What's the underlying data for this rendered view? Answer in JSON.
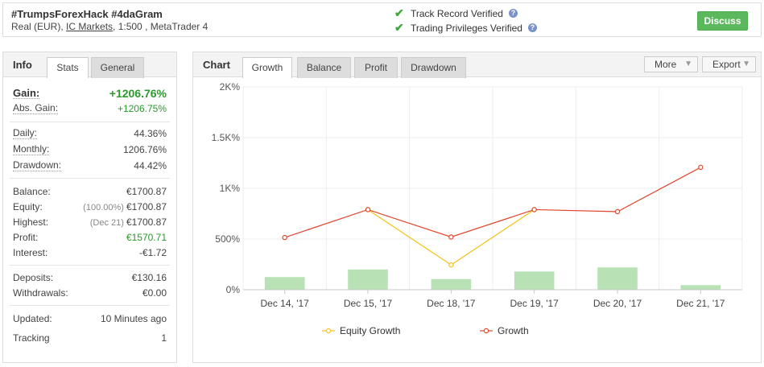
{
  "header": {
    "account_name": "#TrumpsForexHack #4daGram",
    "account_type": "Real (EUR), ",
    "broker": "IC Markets",
    "account_details": ", 1:500 , MetaTrader 4",
    "track_record": "Track Record Verified",
    "trading_privileges": "Trading Privileges Verified",
    "help_mark": "?",
    "discuss_label": "Discuss"
  },
  "left_panel": {
    "title": "Info",
    "tabs": [
      "Stats",
      "General"
    ],
    "gain": {
      "label": "Gain:",
      "value": "+1206.76%"
    },
    "abs_gain": {
      "label": "Abs. Gain:",
      "value": "+1206.75%"
    },
    "daily": {
      "label": "Daily:",
      "value": "44.36%"
    },
    "monthly": {
      "label": "Monthly:",
      "value": "1206.76%"
    },
    "drawdown": {
      "label": "Drawdown:",
      "value": "44.42%"
    },
    "balance": {
      "label": "Balance:",
      "value": "€1700.87"
    },
    "equity": {
      "label": "Equity:",
      "note": "(100.00%)",
      "value": "€1700.87"
    },
    "highest": {
      "label": "Highest:",
      "note": "(Dec 21)",
      "value": "€1700.87"
    },
    "profit": {
      "label": "Profit:",
      "value": "€1570.71"
    },
    "interest": {
      "label": "Interest:",
      "value": "-€1.72"
    },
    "deposits": {
      "label": "Deposits:",
      "value": "€130.16"
    },
    "withdrawals": {
      "label": "Withdrawals:",
      "value": "€0.00"
    },
    "updated": {
      "label": "Updated:",
      "value": "10 Minutes ago"
    },
    "tracking": {
      "label": "Tracking",
      "value": "1"
    }
  },
  "chart_panel": {
    "title": "Chart",
    "tabs": [
      "Growth",
      "Balance",
      "Profit",
      "Drawdown"
    ],
    "more_label": "More",
    "export_label": "Export"
  },
  "chart_data": {
    "type": "line",
    "categories": [
      "Dec 14, '17",
      "Dec 15, '17",
      "Dec 18, '17",
      "Dec 19, '17",
      "Dec 20, '17",
      "Dec 21, '17"
    ],
    "y_ticks": [
      "0%",
      "500%",
      "1K%",
      "1.5K%",
      "2K%"
    ],
    "ylim": [
      0,
      2000
    ],
    "series": [
      {
        "name": "Equity Growth",
        "color": "#f5c21b",
        "values": [
          null,
          790,
          245,
          790,
          null,
          null
        ]
      },
      {
        "name": "Growth",
        "color": "#e0452b",
        "values": [
          515,
          790,
          520,
          790,
          770,
          1207
        ]
      }
    ],
    "bars": {
      "color": "#b8e2b5",
      "values": [
        125,
        200,
        105,
        180,
        220,
        45
      ]
    },
    "grid": true,
    "legend_position": "bottom"
  }
}
